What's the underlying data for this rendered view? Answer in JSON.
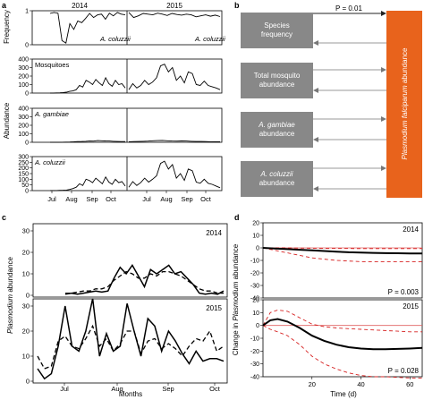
{
  "panel_letters": {
    "a": "a",
    "b": "b",
    "c": "c",
    "d": "d"
  },
  "chart_data": [
    {
      "panel": "a",
      "type": "line",
      "years": [
        "2014",
        "2015"
      ],
      "x_ticks": [
        "Jul",
        "Aug",
        "Sep",
        "Oct"
      ],
      "y_axis_labels": [
        "Frequency",
        "Abundance"
      ],
      "series": [
        {
          "name": "A. coluzzii",
          "kind": "frequency",
          "ylim": [
            0,
            1
          ],
          "yticks": [
            0,
            1
          ],
          "y2014": [
            0.92,
            0.95,
            0.93,
            0.12,
            0.05,
            0.62,
            0.45,
            0.7,
            0.65,
            0.78,
            0.92,
            0.8,
            0.88,
            0.9,
            0.75,
            0.93,
            0.85,
            0.95,
            0.9,
            0.88
          ],
          "y2015": [
            0.95,
            0.8,
            0.85,
            0.92,
            0.9,
            0.88,
            0.93,
            0.9,
            0.86,
            0.92,
            0.89,
            0.87,
            0.9,
            0.88,
            0.82,
            0.85,
            0.88,
            0.84,
            0.87,
            0.83
          ]
        },
        {
          "name": "Mosquitoes",
          "kind": "abundance",
          "ylim": [
            0,
            400
          ],
          "yticks": [
            0,
            100,
            200,
            300,
            400
          ],
          "y2014": [
            0,
            0,
            2,
            3,
            5,
            10,
            20,
            25,
            40,
            90,
            70,
            150,
            130,
            100,
            160,
            120,
            90,
            180,
            110,
            80,
            150,
            100,
            110,
            60
          ],
          "y2015": [
            40,
            110,
            60,
            90,
            150,
            100,
            130,
            180,
            320,
            340,
            250,
            300,
            150,
            200,
            120,
            250,
            230,
            100,
            90,
            140,
            90,
            75,
            60,
            40
          ]
        },
        {
          "name": "A. gambiae",
          "kind": "abundance",
          "ylim": [
            0,
            400
          ],
          "yticks": [
            0,
            100,
            200,
            300,
            400
          ],
          "y2014": [
            0,
            0,
            0,
            1,
            2,
            3,
            5,
            8,
            10,
            12,
            15,
            14,
            20,
            18,
            16,
            15,
            12,
            10,
            8,
            8
          ],
          "y2015": [
            5,
            8,
            10,
            12,
            14,
            18,
            20,
            22,
            18,
            15,
            14,
            16,
            15,
            12,
            10,
            9,
            8,
            6,
            5,
            5
          ]
        },
        {
          "name": "A. coluzzii",
          "kind": "abundance",
          "ylim": [
            0,
            300
          ],
          "yticks": [
            0,
            50,
            100,
            150,
            200,
            250,
            300
          ],
          "y2014": [
            0,
            0,
            1,
            2,
            3,
            5,
            10,
            18,
            30,
            60,
            45,
            100,
            90,
            70,
            110,
            85,
            60,
            120,
            75,
            55,
            100,
            70,
            80,
            40
          ],
          "y2015": [
            30,
            80,
            45,
            70,
            110,
            75,
            100,
            130,
            240,
            260,
            190,
            230,
            110,
            150,
            90,
            190,
            175,
            75,
            65,
            100,
            65,
            55,
            40,
            25
          ]
        }
      ]
    },
    {
      "panel": "b",
      "type": "diagram",
      "p_value": "P = 0.01",
      "predictors": [
        "Species frequency",
        "Total mosquito abundance",
        "A. gambiae abundance",
        "A. coluzzii abundance"
      ],
      "response": "Plasmodium falciparum abundance",
      "colors": {
        "predictor_box": "#888888",
        "response_box": "#e8631c"
      }
    },
    {
      "panel": "c",
      "type": "line",
      "ylabel": "Plasmodium abundance",
      "xlabel": "Months",
      "x_ticks": [
        "Jul",
        "Aug",
        "Sep",
        "Oct"
      ],
      "series_styles": [
        "solid",
        "dashed"
      ],
      "subplots": [
        {
          "year": "2014",
          "ylim": [
            0,
            30
          ],
          "yticks": [
            0,
            10,
            20,
            30
          ],
          "observed": [
            0.5,
            1,
            0.5,
            1,
            1.5,
            2,
            1.5,
            2,
            8,
            13,
            10,
            14,
            9,
            4,
            12,
            10,
            12,
            14,
            10,
            11,
            8,
            5,
            1,
            0.5,
            1,
            0.5,
            2
          ],
          "predicted": [
            1,
            1,
            1.5,
            2,
            2,
            3,
            3,
            4,
            7,
            9,
            11,
            10,
            8,
            8,
            10,
            9,
            11,
            11,
            10,
            9,
            7,
            5,
            3,
            2,
            2,
            1,
            1
          ]
        },
        {
          "year": "2015",
          "ylim": [
            0,
            30
          ],
          "yticks": [
            0,
            10,
            20,
            30
          ],
          "observed": [
            5,
            1,
            3,
            14,
            30,
            14,
            12,
            20,
            33,
            10,
            19,
            12,
            14,
            31,
            20,
            10,
            25,
            22,
            12,
            20,
            16,
            11,
            7,
            12,
            8,
            9,
            9,
            8
          ],
          "predicted": [
            10,
            5,
            6,
            16,
            18,
            14,
            13,
            17,
            22,
            14,
            17,
            12,
            15,
            20,
            20,
            11,
            16,
            17,
            13,
            15,
            13,
            10,
            14,
            17,
            16,
            20,
            12,
            14
          ]
        }
      ]
    },
    {
      "panel": "d",
      "type": "line",
      "ylabel": "Change in Plasmodium abundance",
      "xlabel": "Time (d)",
      "xlim": [
        0,
        65
      ],
      "x_ticks": [
        20,
        40,
        60
      ],
      "subplots": [
        {
          "year": "2014",
          "p_value": "P = 0.003",
          "ylim": [
            -40,
            20
          ],
          "yticks": [
            -40,
            -30,
            -20,
            -10,
            0,
            10,
            20
          ],
          "x": [
            0,
            5,
            10,
            15,
            20,
            25,
            30,
            35,
            40,
            45,
            50,
            55,
            60,
            65
          ],
          "mean": [
            0,
            -0.5,
            -1,
            -1.5,
            -2,
            -2.5,
            -3,
            -3.5,
            -3.8,
            -4,
            -4.2,
            -4.3,
            -4.4,
            -4.5
          ],
          "upper": [
            0,
            0,
            0,
            -0.2,
            -0.3,
            -0.4,
            -0.5,
            -0.5,
            -0.6,
            -0.6,
            -0.6,
            -0.6,
            -0.6,
            -0.6
          ],
          "lower": [
            0,
            -2,
            -4,
            -6,
            -8,
            -9,
            -10,
            -10.5,
            -11,
            -11,
            -11,
            -11,
            -11,
            -11
          ]
        },
        {
          "year": "2015",
          "p_value": "P = 0.028",
          "ylim": [
            -40,
            20
          ],
          "yticks": [
            -40,
            -30,
            -20,
            -10,
            0,
            10,
            20
          ],
          "x": [
            0,
            3,
            6,
            10,
            15,
            20,
            25,
            30,
            35,
            40,
            45,
            50,
            55,
            60,
            65
          ],
          "mean": [
            0,
            4,
            5,
            3,
            -2,
            -8,
            -12,
            -15,
            -17,
            -18,
            -18.5,
            -18.5,
            -18.3,
            -18,
            -17.5
          ],
          "upper": [
            0,
            10,
            12,
            11,
            6,
            1,
            -1,
            -2,
            -2.5,
            -3,
            -3.5,
            -4,
            -4.5,
            -5,
            -5
          ],
          "lower": [
            0,
            -3,
            -5,
            -8,
            -15,
            -24,
            -30,
            -34,
            -37,
            -39,
            -40,
            -40,
            -40.5,
            -41,
            -41
          ]
        }
      ]
    }
  ]
}
